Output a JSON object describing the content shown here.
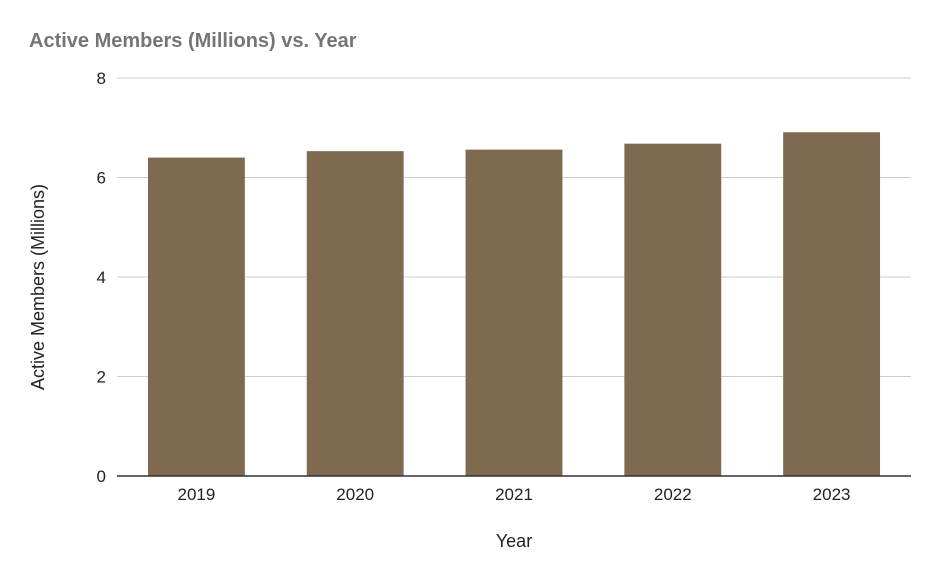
{
  "chart_data": {
    "type": "bar",
    "title": "Active Members (Millions) vs. Year",
    "xlabel": "Year",
    "ylabel": "Active Members (Millions)",
    "categories": [
      "2019",
      "2020",
      "2021",
      "2022",
      "2023"
    ],
    "values": [
      6.4,
      6.53,
      6.56,
      6.68,
      6.91
    ],
    "ylim": [
      0,
      8
    ],
    "yticks": [
      0,
      2,
      4,
      6,
      8
    ],
    "grid": true,
    "legend": "none",
    "colors": {
      "bar": "#7f6a4f",
      "title": "#757575",
      "grid": "#cccccc",
      "axis": "#333333"
    }
  }
}
